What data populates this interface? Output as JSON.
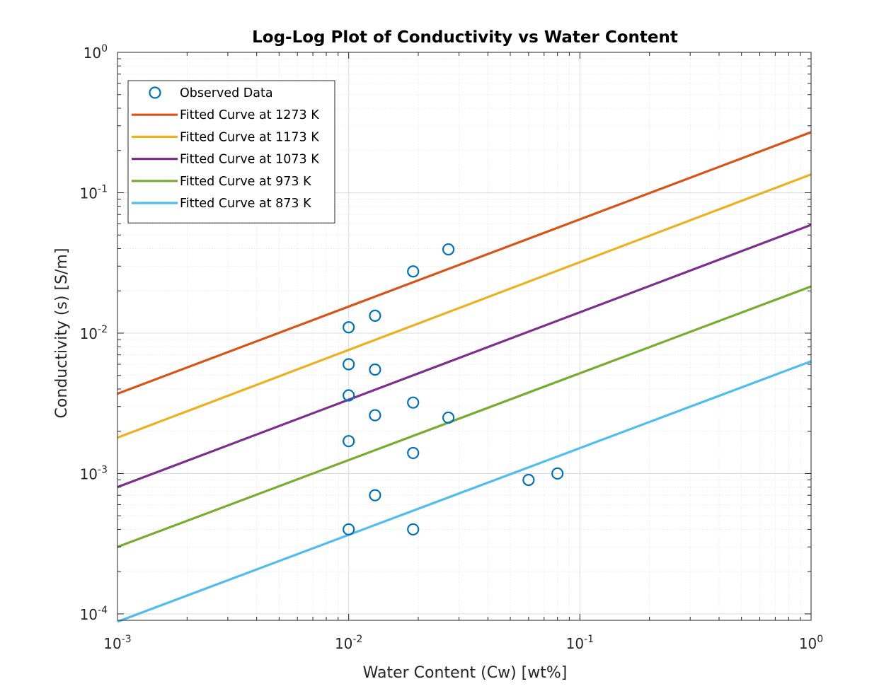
{
  "chart_data": {
    "type": "scatter",
    "title": "Log-Log Plot of Conductivity vs Water Content",
    "xlabel": "Water Content (Cw) [wt%]",
    "ylabel": "Conductivity (s) [S/m]",
    "x_scale": "log",
    "y_scale": "log",
    "xlim": [
      0.001,
      1
    ],
    "ylim": [
      9e-05,
      1
    ],
    "grid": "on",
    "minor_grid": "on",
    "legend_position": "top-left",
    "x_ticks": [
      {
        "base": "10",
        "exp": "-3",
        "value": 0.001
      },
      {
        "base": "10",
        "exp": "-2",
        "value": 0.01
      },
      {
        "base": "10",
        "exp": "-1",
        "value": 0.1
      },
      {
        "base": "10",
        "exp": "0",
        "value": 1
      }
    ],
    "y_ticks": [
      {
        "base": "10",
        "exp": "-4",
        "value": 0.0001
      },
      {
        "base": "10",
        "exp": "-3",
        "value": 0.001
      },
      {
        "base": "10",
        "exp": "-2",
        "value": 0.01
      },
      {
        "base": "10",
        "exp": "-1",
        "value": 0.1
      },
      {
        "base": "10",
        "exp": "0",
        "value": 1
      }
    ],
    "scatter": {
      "name": "Observed Data",
      "color": "#0072BD",
      "points": [
        {
          "x": 0.01,
          "y": 0.011
        },
        {
          "x": 0.01,
          "y": 0.006
        },
        {
          "x": 0.01,
          "y": 0.0036
        },
        {
          "x": 0.01,
          "y": 0.0017
        },
        {
          "x": 0.01,
          "y": 0.0004
        },
        {
          "x": 0.013,
          "y": 0.0133
        },
        {
          "x": 0.013,
          "y": 0.0055
        },
        {
          "x": 0.013,
          "y": 0.0026
        },
        {
          "x": 0.013,
          "y": 0.0007
        },
        {
          "x": 0.019,
          "y": 0.0275
        },
        {
          "x": 0.019,
          "y": 0.0032
        },
        {
          "x": 0.019,
          "y": 0.0014
        },
        {
          "x": 0.019,
          "y": 0.0004
        },
        {
          "x": 0.027,
          "y": 0.0395
        },
        {
          "x": 0.027,
          "y": 0.0025
        },
        {
          "x": 0.06,
          "y": 0.0009
        },
        {
          "x": 0.08,
          "y": 0.001
        }
      ]
    },
    "series": [
      {
        "name": "Fitted Curve at 1273 K",
        "color": "#D95319",
        "x": [
          0.001,
          1
        ],
        "y": [
          0.0037,
          0.27
        ]
      },
      {
        "name": "Fitted Curve at 1173 K",
        "color": "#EDB120",
        "x": [
          0.001,
          1
        ],
        "y": [
          0.0018,
          0.135
        ]
      },
      {
        "name": "Fitted Curve at 1073 K",
        "color": "#7E2F8E",
        "x": [
          0.001,
          1
        ],
        "y": [
          0.0008,
          0.059
        ]
      },
      {
        "name": "Fitted Curve at 973 K",
        "color": "#77AC30",
        "x": [
          0.001,
          1
        ],
        "y": [
          0.0003,
          0.0215
        ]
      },
      {
        "name": "Fitted Curve at 873 K",
        "color": "#4DBEEE",
        "x": [
          0.001,
          1
        ],
        "y": [
          8.8e-05,
          0.0063
        ]
      }
    ]
  }
}
